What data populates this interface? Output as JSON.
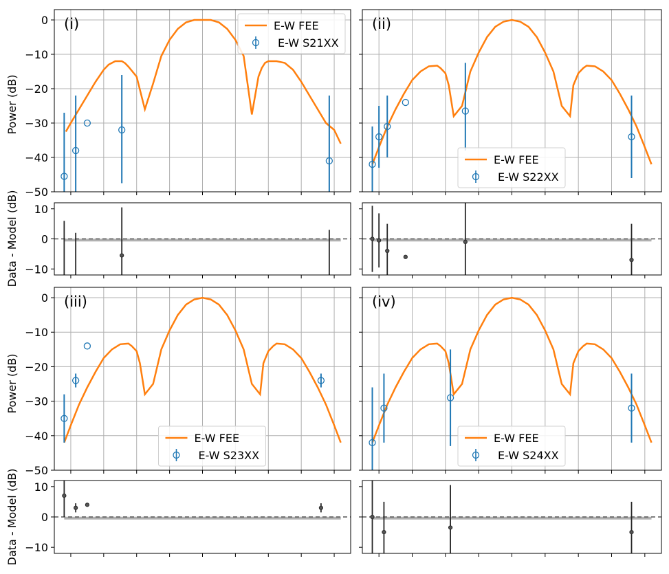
{
  "chart_data": [
    {
      "type": "line",
      "panel_label": "(i)",
      "ylabel": "Power (dB)",
      "ylim": [
        -50,
        3
      ],
      "yticks": [
        "0",
        "−10",
        "−20",
        "−30",
        "−40",
        "−50"
      ],
      "legend_position": "top-right",
      "model": {
        "name": "E-W FEE",
        "x": [
          -83,
          -80,
          -75,
          -70,
          -65,
          -60,
          -57,
          -55,
          -53,
          -51,
          -50,
          -49,
          -47,
          -45,
          -40,
          -35,
          -30,
          -25,
          -20,
          -15,
          -10,
          -5,
          0,
          5,
          10,
          15,
          20,
          25,
          30,
          32,
          34,
          36,
          38,
          40,
          45,
          50,
          55,
          60,
          65,
          70,
          75,
          80,
          84
        ],
        "y": [
          -32.5,
          -30,
          -26,
          -22,
          -18,
          -14.5,
          -13,
          -12.5,
          -12,
          -12,
          -12,
          -12,
          -12.6,
          -13.6,
          -16.5,
          -26,
          -18.5,
          -10.5,
          -5.8,
          -2.6,
          -0.7,
          0,
          0,
          0,
          -0.7,
          -2.6,
          -5.8,
          -10.5,
          -27.5,
          -22,
          -16.5,
          -14,
          -12.5,
          -12,
          -12,
          -12.5,
          -14.5,
          -18,
          -22,
          -26,
          -30,
          -32,
          -36
        ]
      },
      "data": {
        "name": "E-W S21XX",
        "x": [
          -84,
          -77,
          -70,
          -49,
          77
        ],
        "y": [
          -45.5,
          -38,
          -30,
          -32,
          -41
        ],
        "yerr": [
          [
            18.5,
            16,
            0,
            15.5,
            19
          ],
          [
            18.5,
            16,
            0,
            16,
            19
          ]
        ]
      },
      "residuals": {
        "ylabel": "Data - Model (dB)",
        "ylim": [
          -12,
          12
        ],
        "yticks": [
          "10",
          "0",
          "−10"
        ],
        "x": [
          -84,
          -77,
          -49,
          77
        ],
        "y": [
          -13,
          -15,
          -5.5,
          -13
        ],
        "yerr": [
          [
            19,
            17,
            16,
            16
          ],
          [
            19,
            17,
            16,
            16
          ]
        ]
      }
    },
    {
      "type": "line",
      "panel_label": "(ii)",
      "ylim": [
        -50,
        3
      ],
      "legend_position": "bottom-right",
      "model": {
        "name": "E-W FEE",
        "x": [
          -84,
          -80,
          -75,
          -70,
          -65,
          -60,
          -55,
          -50,
          -45,
          -43,
          -40,
          -38,
          -35,
          -30,
          -25,
          -20,
          -15,
          -10,
          -5,
          0,
          5,
          10,
          15,
          20,
          25,
          30,
          35,
          37,
          40,
          43,
          45,
          50,
          55,
          60,
          65,
          70,
          75,
          80,
          84
        ],
        "y": [
          -42,
          -37,
          -31,
          -26,
          -21.5,
          -17.5,
          -15,
          -13.5,
          -13.3,
          -14,
          -15.5,
          -19,
          -28,
          -25,
          -15,
          -9.5,
          -5,
          -2,
          -0.5,
          0,
          -0.5,
          -2,
          -5,
          -9.5,
          -15,
          -25,
          -28,
          -19,
          -15.5,
          -14,
          -13.3,
          -13.5,
          -15,
          -17.5,
          -21.5,
          -26,
          -31,
          -37,
          -42
        ]
      },
      "data": {
        "name": "E-W S22XX",
        "x": [
          -84,
          -80,
          -75,
          -64,
          -28,
          72
        ],
        "y": [
          -42,
          -34,
          -31,
          -24,
          -26.5,
          -34
        ],
        "yerr": [
          [
            11,
            9,
            9,
            0,
            11.5,
            12
          ],
          [
            11,
            9,
            9,
            0,
            14,
            12
          ]
        ]
      },
      "residuals": {
        "ylim": [
          -12,
          12
        ],
        "x": [
          -84,
          -80,
          -75,
          -64,
          -28,
          72
        ],
        "y": [
          0,
          -0.5,
          -4,
          -6,
          -1,
          -7
        ],
        "yerr": [
          [
            11,
            9,
            9,
            0,
            14,
            12
          ],
          [
            11,
            9,
            9,
            0,
            14,
            12
          ]
        ]
      }
    },
    {
      "type": "line",
      "panel_label": "(iii)",
      "ylabel": "Power (dB)",
      "ylim": [
        -50,
        3
      ],
      "yticks": [
        "0",
        "−10",
        "−20",
        "−30",
        "−40",
        "−50"
      ],
      "legend_position": "bottom-center",
      "model": {
        "name": "E-W FEE",
        "x": [
          -84,
          -80,
          -75,
          -70,
          -65,
          -60,
          -55,
          -50,
          -45,
          -43,
          -40,
          -38,
          -35,
          -30,
          -25,
          -20,
          -15,
          -10,
          -5,
          0,
          5,
          10,
          15,
          20,
          25,
          30,
          35,
          37,
          40,
          43,
          45,
          50,
          55,
          60,
          65,
          70,
          75,
          80,
          84
        ],
        "y": [
          -42,
          -37,
          -31,
          -26,
          -21.5,
          -17.5,
          -15,
          -13.5,
          -13.3,
          -14,
          -15.5,
          -19,
          -28,
          -25,
          -15,
          -9.5,
          -5,
          -2,
          -0.5,
          0,
          -0.5,
          -2,
          -5,
          -9.5,
          -15,
          -25,
          -28,
          -19,
          -15.5,
          -14,
          -13.3,
          -13.5,
          -15,
          -17.5,
          -21.5,
          -26,
          -31,
          -37,
          -42
        ]
      },
      "data": {
        "name": "E-W S23XX",
        "x": [
          -84,
          -77,
          -70,
          72
        ],
        "y": [
          -35,
          -24,
          -14,
          -24
        ],
        "yerr": [
          [
            7,
            2,
            0,
            2
          ],
          [
            7,
            2,
            0,
            2
          ]
        ]
      },
      "residuals": {
        "ylim": [
          -12,
          12
        ],
        "yticks": [
          "10",
          "0",
          "−10"
        ],
        "ylabel": "Data - Model (dB)",
        "x": [
          -84,
          -77,
          -70,
          72
        ],
        "y": [
          7,
          3,
          4,
          3
        ],
        "yerr": [
          [
            7,
            1.5,
            0,
            1.5
          ],
          [
            7,
            1.5,
            0,
            1.5
          ]
        ]
      }
    },
    {
      "type": "line",
      "panel_label": "(iv)",
      "ylim": [
        -50,
        3
      ],
      "legend_position": "bottom-right",
      "model": {
        "name": "E-W FEE",
        "x": [
          -84,
          -80,
          -75,
          -70,
          -65,
          -60,
          -55,
          -50,
          -45,
          -43,
          -40,
          -38,
          -35,
          -30,
          -25,
          -20,
          -15,
          -10,
          -5,
          0,
          5,
          10,
          15,
          20,
          25,
          30,
          35,
          37,
          40,
          43,
          45,
          50,
          55,
          60,
          65,
          70,
          75,
          80,
          84
        ],
        "y": [
          -42,
          -37,
          -31,
          -26,
          -21.5,
          -17.5,
          -15,
          -13.5,
          -13.3,
          -14,
          -15.5,
          -19,
          -28,
          -25,
          -15,
          -9.5,
          -5,
          -2,
          -0.5,
          0,
          -0.5,
          -2,
          -5,
          -9.5,
          -15,
          -25,
          -28,
          -19,
          -15.5,
          -14,
          -13.3,
          -13.5,
          -15,
          -17.5,
          -21.5,
          -26,
          -31,
          -37,
          -42
        ]
      },
      "data": {
        "name": "E-W S24XX",
        "x": [
          -84,
          -77,
          -37,
          72
        ],
        "y": [
          -42,
          -32,
          -29,
          -32
        ],
        "yerr": [
          [
            16,
            10,
            14,
            10
          ],
          [
            16,
            10,
            14,
            10
          ]
        ]
      },
      "residuals": {
        "ylim": [
          -12,
          12
        ],
        "x": [
          -84,
          -77,
          -37,
          72
        ],
        "y": [
          0,
          -5,
          -3.5,
          -5
        ],
        "yerr": [
          [
            16,
            10,
            14,
            10
          ],
          [
            16,
            10,
            14,
            10
          ]
        ]
      }
    }
  ],
  "colors": {
    "model": "#ff7f0e",
    "data": "#1f77b4",
    "residual": "#262626",
    "band": "#b0b0b0",
    "grid": "#b0b0b0"
  }
}
